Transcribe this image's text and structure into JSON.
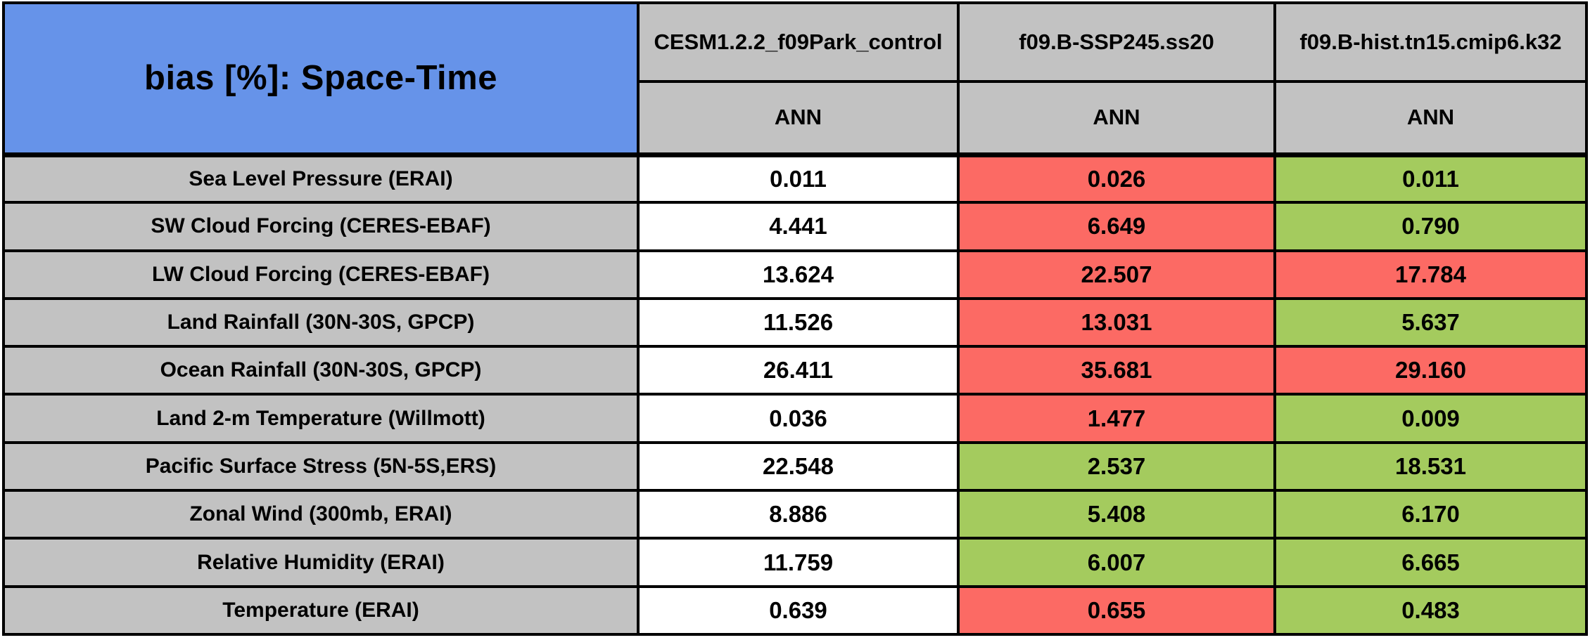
{
  "chart_data": {
    "type": "table",
    "title": "bias [%]: Space-Time",
    "columns": [
      {
        "model": "CESM1.2.2_f09Park_control",
        "season": "ANN"
      },
      {
        "model": "f09.B-SSP245.ss20",
        "season": "ANN"
      },
      {
        "model": "f09.B-hist.tn15.cmip6.k32",
        "season": "ANN"
      }
    ],
    "rows": [
      {
        "label": "Sea Level Pressure (ERAI)",
        "values": [
          "0.011",
          "0.026",
          "0.011"
        ],
        "colors": [
          "white",
          "red",
          "green"
        ]
      },
      {
        "label": "SW Cloud Forcing (CERES-EBAF)",
        "values": [
          "4.441",
          "6.649",
          "0.790"
        ],
        "colors": [
          "white",
          "red",
          "green"
        ]
      },
      {
        "label": "LW Cloud Forcing (CERES-EBAF)",
        "values": [
          "13.624",
          "22.507",
          "17.784"
        ],
        "colors": [
          "white",
          "red",
          "red"
        ]
      },
      {
        "label": "Land Rainfall (30N-30S, GPCP)",
        "values": [
          "11.526",
          "13.031",
          "5.637"
        ],
        "colors": [
          "white",
          "red",
          "green"
        ]
      },
      {
        "label": "Ocean Rainfall (30N-30S, GPCP)",
        "values": [
          "26.411",
          "35.681",
          "29.160"
        ],
        "colors": [
          "white",
          "red",
          "red"
        ]
      },
      {
        "label": "Land 2-m Temperature (Willmott)",
        "values": [
          "0.036",
          "1.477",
          "0.009"
        ],
        "colors": [
          "white",
          "red",
          "green"
        ]
      },
      {
        "label": "Pacific Surface Stress (5N-5S,ERS)",
        "values": [
          "22.548",
          "2.537",
          "18.531"
        ],
        "colors": [
          "white",
          "green",
          "green"
        ]
      },
      {
        "label": "Zonal Wind (300mb, ERAI)",
        "values": [
          "8.886",
          "5.408",
          "6.170"
        ],
        "colors": [
          "white",
          "green",
          "green"
        ]
      },
      {
        "label": "Relative Humidity (ERAI)",
        "values": [
          "11.759",
          "6.007",
          "6.665"
        ],
        "colors": [
          "white",
          "green",
          "green"
        ]
      },
      {
        "label": "Temperature (ERAI)",
        "values": [
          "0.639",
          "0.655",
          "0.483"
        ],
        "colors": [
          "white",
          "red",
          "green"
        ]
      }
    ],
    "palette": {
      "white": "#FFFFFF",
      "red": "#FC6A64",
      "green": "#A4CB5E",
      "title_blue": "#6693E9",
      "header_gray": "#C2C2C2",
      "border_black": "#000000"
    }
  }
}
